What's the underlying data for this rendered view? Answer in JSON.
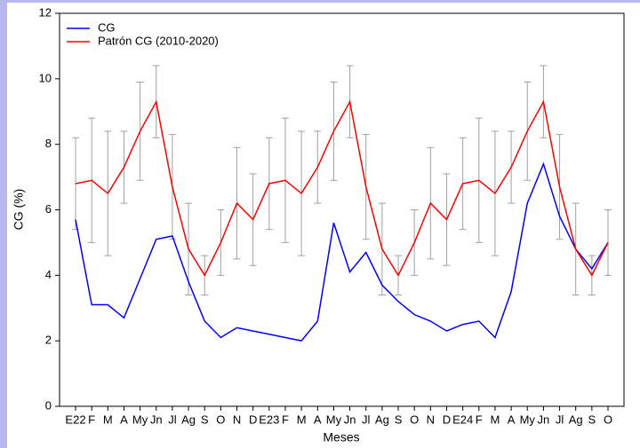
{
  "chart_data": {
    "type": "line",
    "xlabel": "Meses",
    "ylabel": "CG (%)",
    "categories": [
      "E22",
      "F",
      "M",
      "A",
      "My",
      "Jn",
      "Jl",
      "Ag",
      "S",
      "O",
      "N",
      "D",
      "E23",
      "F",
      "M",
      "A",
      "My",
      "Jn",
      "Jl",
      "Ag",
      "S",
      "O",
      "N",
      "D",
      "E24",
      "F",
      "M",
      "A",
      "My",
      "Jn",
      "Jl",
      "Ag",
      "S",
      "O"
    ],
    "series": [
      {
        "name": "CG",
        "color": "#0000ff",
        "values": [
          5.7,
          3.1,
          3.1,
          2.7,
          3.9,
          5.1,
          5.2,
          3.8,
          2.6,
          2.1,
          2.4,
          2.3,
          2.2,
          2.1,
          2.0,
          2.6,
          5.6,
          4.1,
          4.7,
          3.7,
          3.2,
          2.8,
          2.6,
          2.3,
          2.5,
          2.6,
          2.1,
          3.5,
          6.2,
          7.4,
          5.8,
          4.8,
          4.2,
          5.0
        ]
      },
      {
        "name": "Patrón CG (2010-2020)",
        "color": "#ff0000",
        "error_color": "#a0a0a0",
        "values": [
          6.8,
          6.9,
          6.5,
          7.3,
          8.4,
          9.3,
          6.7,
          4.8,
          4.0,
          5.0,
          6.2,
          5.7,
          6.8,
          6.9,
          6.5,
          7.3,
          8.4,
          9.3,
          6.7,
          4.8,
          4.0,
          5.0,
          6.2,
          5.7,
          6.8,
          6.9,
          6.5,
          7.3,
          8.4,
          9.3,
          6.7,
          4.8,
          4.0,
          5.0
        ],
        "errors": [
          1.4,
          1.9,
          1.9,
          1.1,
          1.5,
          1.1,
          1.6,
          1.4,
          0.6,
          1.0,
          1.7,
          1.4,
          1.4,
          1.9,
          1.9,
          1.1,
          1.5,
          1.1,
          1.6,
          1.4,
          0.6,
          1.0,
          1.7,
          1.4,
          1.4,
          1.9,
          1.9,
          1.1,
          1.5,
          1.1,
          1.6,
          1.4,
          0.6,
          1.0
        ]
      }
    ],
    "ylim": [
      0,
      12
    ],
    "yticks": [
      0,
      2,
      4,
      6,
      8,
      10,
      12
    ],
    "grid": false,
    "legend": "upper left"
  }
}
